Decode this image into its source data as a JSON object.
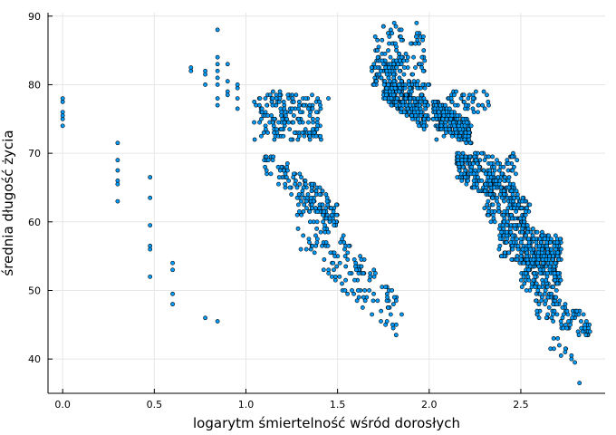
{
  "chart_data": {
    "type": "scatter",
    "title": "",
    "xlabel": "logarytm śmiertelność wśród dorosłych",
    "ylabel": "średnia długość życia",
    "xlim": [
      -0.08,
      2.96
    ],
    "ylim": [
      35.0,
      90.5
    ],
    "xticks": [
      0.0,
      0.5,
      1.0,
      1.5,
      2.0,
      2.5
    ],
    "xtick_labels": [
      "0.0",
      "0.5",
      "1.0",
      "1.5",
      "2.0",
      "2.5"
    ],
    "yticks": [
      40,
      50,
      60,
      70,
      80,
      90
    ],
    "ytick_labels": [
      "40",
      "50",
      "60",
      "70",
      "80",
      "90"
    ],
    "grid": true,
    "legend": "none",
    "marker_color": "#009AFA",
    "series": [
      {
        "points_isolated": [
          [
            0.0,
            78.0
          ],
          [
            0.0,
            77.5
          ],
          [
            0.0,
            76.0
          ],
          [
            0.0,
            75.5
          ],
          [
            0.0,
            75.0
          ],
          [
            0.0,
            74.0
          ],
          [
            0.3,
            71.5
          ],
          [
            0.3,
            69.0
          ],
          [
            0.3,
            67.5
          ],
          [
            0.3,
            66.0
          ],
          [
            0.3,
            65.5
          ],
          [
            0.3,
            63.0
          ],
          [
            0.477,
            66.5
          ],
          [
            0.477,
            63.5
          ],
          [
            0.477,
            59.5
          ],
          [
            0.477,
            56.5
          ],
          [
            0.477,
            56.0
          ],
          [
            0.477,
            52.0
          ],
          [
            0.6,
            54.0
          ],
          [
            0.6,
            53.0
          ],
          [
            0.6,
            49.5
          ],
          [
            0.6,
            48.0
          ],
          [
            0.7,
            82.5
          ],
          [
            0.7,
            82.0
          ],
          [
            0.778,
            82.0
          ],
          [
            0.778,
            81.5
          ],
          [
            0.778,
            80.0
          ],
          [
            0.778,
            46.0
          ],
          [
            0.845,
            88.0
          ],
          [
            0.845,
            84.0
          ],
          [
            0.845,
            83.0
          ],
          [
            0.845,
            82.0
          ],
          [
            0.845,
            81.0
          ],
          [
            0.845,
            80.0
          ],
          [
            0.845,
            78.0
          ],
          [
            0.845,
            77.0
          ],
          [
            0.845,
            45.5
          ],
          [
            0.9,
            83.0
          ],
          [
            0.9,
            80.5
          ],
          [
            0.9,
            79.0
          ],
          [
            0.9,
            78.5
          ],
          [
            0.954,
            80.0
          ],
          [
            0.954,
            79.5
          ],
          [
            0.954,
            78.0
          ],
          [
            0.954,
            76.5
          ],
          [
            1.45,
            78.0
          ],
          [
            2.04,
            72.0
          ],
          [
            2.08,
            72.5
          ],
          [
            2.11,
            73.5
          ],
          [
            1.82,
            45.0
          ],
          [
            1.85,
            46.5
          ],
          [
            1.79,
            46.5
          ],
          [
            2.82,
            36.5
          ],
          [
            2.83,
            44.5
          ],
          [
            2.85,
            44.5
          ]
        ],
        "bands": [
          {
            "x": [
              1.04,
              1.41
            ],
            "y": [
              72.0,
              79.0
            ],
            "n": 170
          },
          {
            "x": [
              1.1,
              1.5
            ],
            "y_from": [
              71.0,
              63.0
            ],
            "y_to": [
              67.0,
              59.0
            ],
            "n": 130
          },
          {
            "x": [
              1.28,
              1.83
            ],
            "y_from": [
              66.0,
              49.0
            ],
            "y_to": [
              56.0,
              43.0
            ],
            "n": 150
          },
          {
            "x": [
              1.7,
              1.98
            ],
            "y": [
              80.0,
              89.0
            ],
            "n": 120
          },
          {
            "x": [
              1.68,
              1.85
            ],
            "y": [
              80.0,
              84.0
            ],
            "n": 50
          },
          {
            "x": [
              1.75,
              2.0
            ],
            "y_from": [
              80.0,
              80.0
            ],
            "y_to": [
              78.0,
              73.0
            ],
            "n": 250
          },
          {
            "x": [
              2.02,
              2.23
            ],
            "y_from": [
              78.0,
              74.5
            ],
            "y_to": [
              74.0,
              71.0
            ],
            "n": 240
          },
          {
            "x": [
              2.1,
              2.33
            ],
            "y": [
              76.0,
              79.0
            ],
            "n": 40
          },
          {
            "x": [
              2.15,
              2.48
            ],
            "y_from": [
              70.0,
              70.0
            ],
            "y_to": [
              66.0,
              62.0
            ],
            "n": 220
          },
          {
            "x": [
              2.3,
              2.55
            ],
            "y_from": [
              68.0,
              63.0
            ],
            "y_to": [
              60.0,
              59.0
            ],
            "n": 160
          },
          {
            "x": [
              2.38,
              2.72
            ],
            "y_from": [
              60.0,
              58.0
            ],
            "y_to": [
              55.0,
              51.0
            ],
            "n": 230
          },
          {
            "x": [
              2.5,
              2.72
            ],
            "y_from": [
              58.0,
              58.0
            ],
            "y_to": [
              50.0,
              48.0
            ],
            "n": 150
          },
          {
            "x": [
              2.58,
              2.88
            ],
            "y_from": [
              51.0,
              46.0
            ],
            "y_to": [
              46.0,
              43.0
            ],
            "n": 90
          },
          {
            "x": [
              2.65,
              2.8
            ],
            "y_from": [
              44.0,
              41.0
            ],
            "y_to": [
              41.0,
              38.5
            ],
            "n": 12
          }
        ]
      }
    ]
  }
}
